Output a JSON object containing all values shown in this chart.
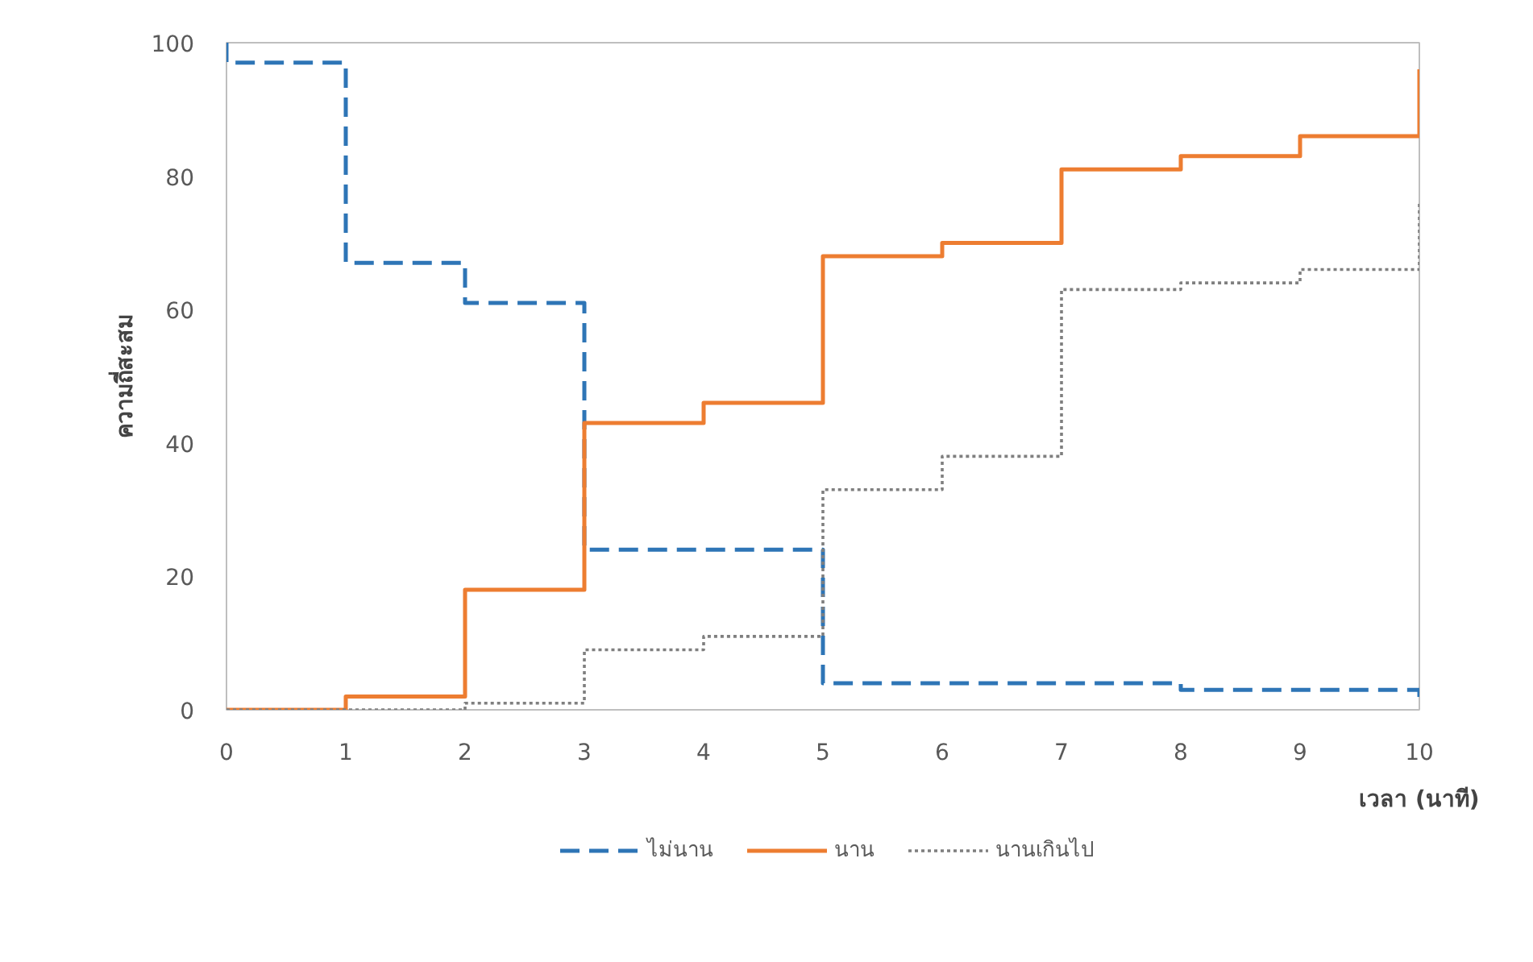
{
  "chart_data": {
    "type": "step",
    "xlabel": "เวลา (นาที)",
    "ylabel": "ความถี่สะสม",
    "x": [
      0,
      0,
      1,
      2,
      3,
      4,
      5,
      6,
      7,
      8,
      9,
      10,
      10
    ],
    "series": [
      {
        "name": "ไม่นาน",
        "color": "#2e75b6",
        "line_style": "dashed",
        "values": [
          100,
          97,
          67,
          61,
          24,
          24,
          4,
          4,
          4,
          3,
          3,
          3,
          1
        ]
      },
      {
        "name": "นาน",
        "color": "#ed7d31",
        "line_style": "solid",
        "values": [
          0,
          0,
          2,
          18,
          43,
          46,
          68,
          70,
          81,
          83,
          86,
          86,
          96
        ]
      },
      {
        "name": "นานเกินไป",
        "color": "#7f7f7f",
        "line_style": "dotted",
        "values": [
          0,
          0,
          0,
          1,
          9,
          11,
          33,
          38,
          63,
          64,
          66,
          66,
          76
        ]
      }
    ],
    "xlim": [
      0,
      10
    ],
    "ylim": [
      0,
      100
    ],
    "xticks": [
      0,
      1,
      2,
      3,
      4,
      5,
      6,
      7,
      8,
      9,
      10
    ],
    "yticks": [
      0,
      20,
      40,
      60,
      80,
      100
    ],
    "grid": false,
    "legend": "bottom"
  }
}
